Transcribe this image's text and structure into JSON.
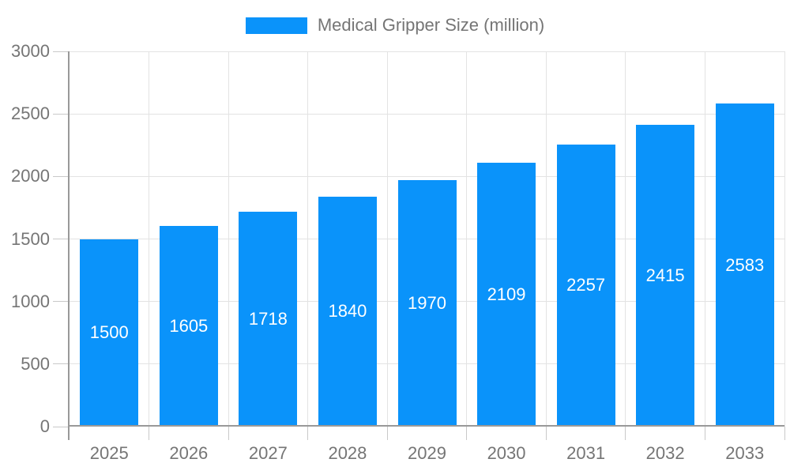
{
  "legend": {
    "label": "Medical Gripper Size (million)"
  },
  "colors": {
    "bar": "#0A93FA",
    "bar_label": "#FFFFFF",
    "axis": "#999999",
    "grid": "#E3E3E3",
    "tick": "#C9C9C9",
    "text": "#757575",
    "background": "#FFFFFF"
  },
  "chart_data": {
    "type": "bar",
    "title": "Medical Gripper Size (million)",
    "categories": [
      "2025",
      "2026",
      "2027",
      "2028",
      "2029",
      "2030",
      "2031",
      "2032",
      "2033"
    ],
    "values": [
      1500,
      1605,
      1718,
      1840,
      1970,
      2109,
      2257,
      2415,
      2583
    ],
    "xlabel": "",
    "ylabel": "",
    "ylim": [
      0,
      3000
    ],
    "yticks": [
      0,
      500,
      1000,
      1500,
      2000,
      2500,
      3000
    ],
    "grid": true,
    "legend_position": "top",
    "bar_label_position": "middle"
  }
}
